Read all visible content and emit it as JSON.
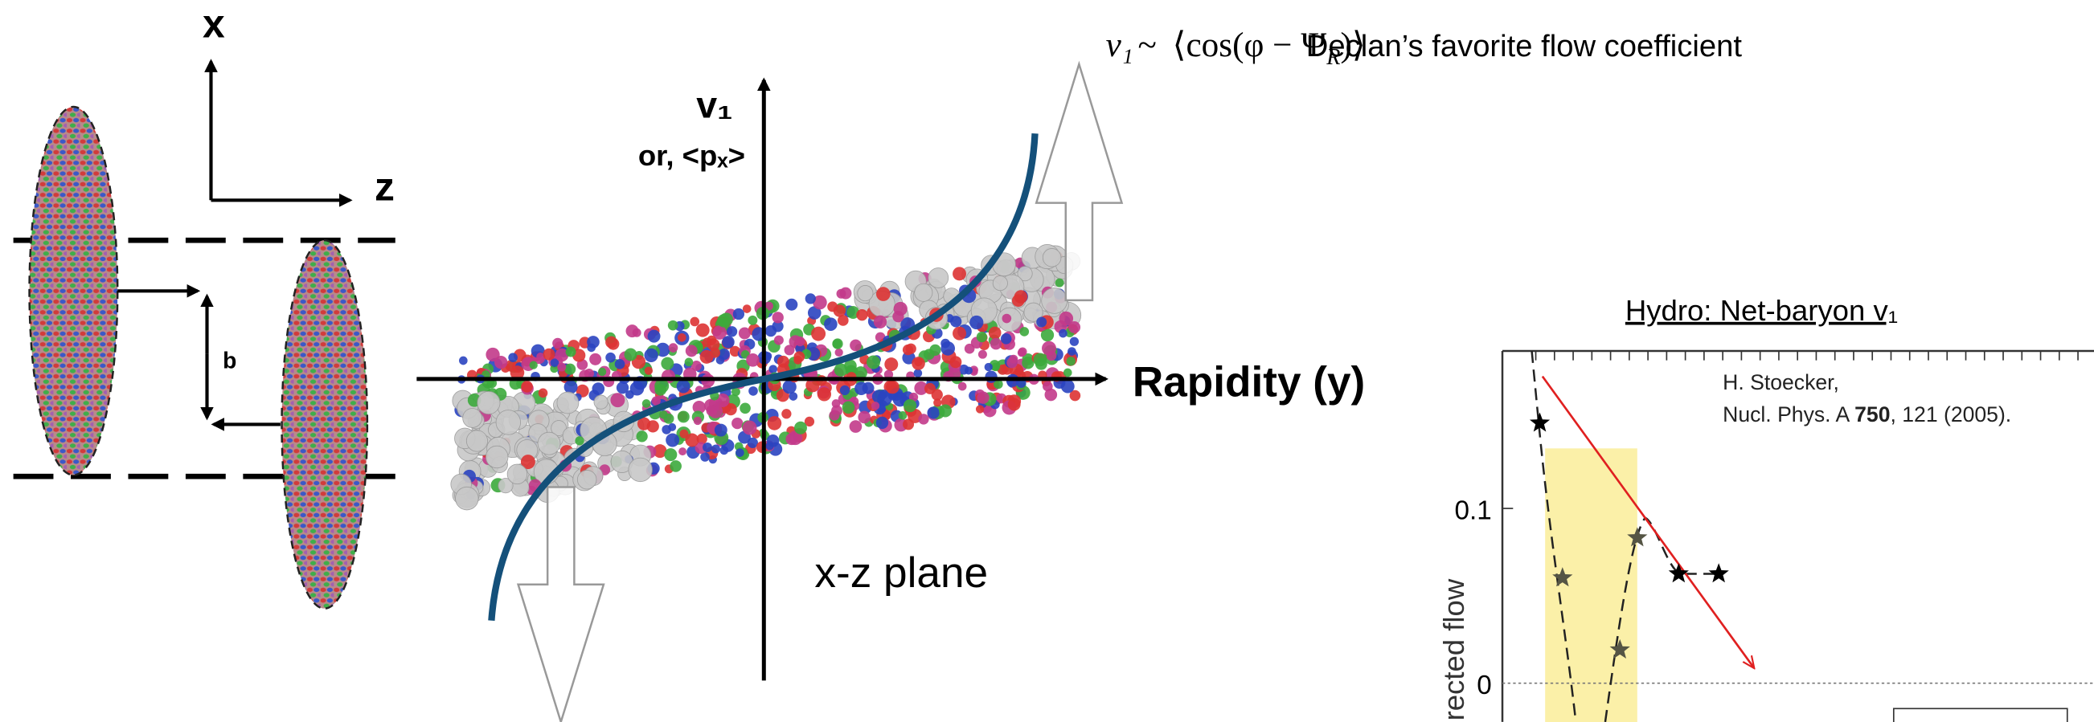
{
  "labels": {
    "axis_x": "x",
    "axis_z": "z",
    "impact": "b",
    "v1_axis": "v₁",
    "px_axis": "or, <pₓ>",
    "rapidity": "Rapidity (y)",
    "plane": "x-z plane"
  },
  "formula": {
    "lhs": "v₁",
    "op": "~",
    "rhs": "⟨cos(φ − Ψ",
    "sub": "R",
    "close": ")⟩",
    "caption": "Declan’s favorite flow coefficient"
  },
  "inset": {
    "title": "Hydro: Net-baryon v₁",
    "author": "H. Stoecker,",
    "ref_start": "Nucl. Phys. A ",
    "ref_volume": "750",
    "ref_end": ", 121 (2005).",
    "y_label": "irected flow",
    "tick_top": "0.1",
    "tick_zero": "0"
  }
}
